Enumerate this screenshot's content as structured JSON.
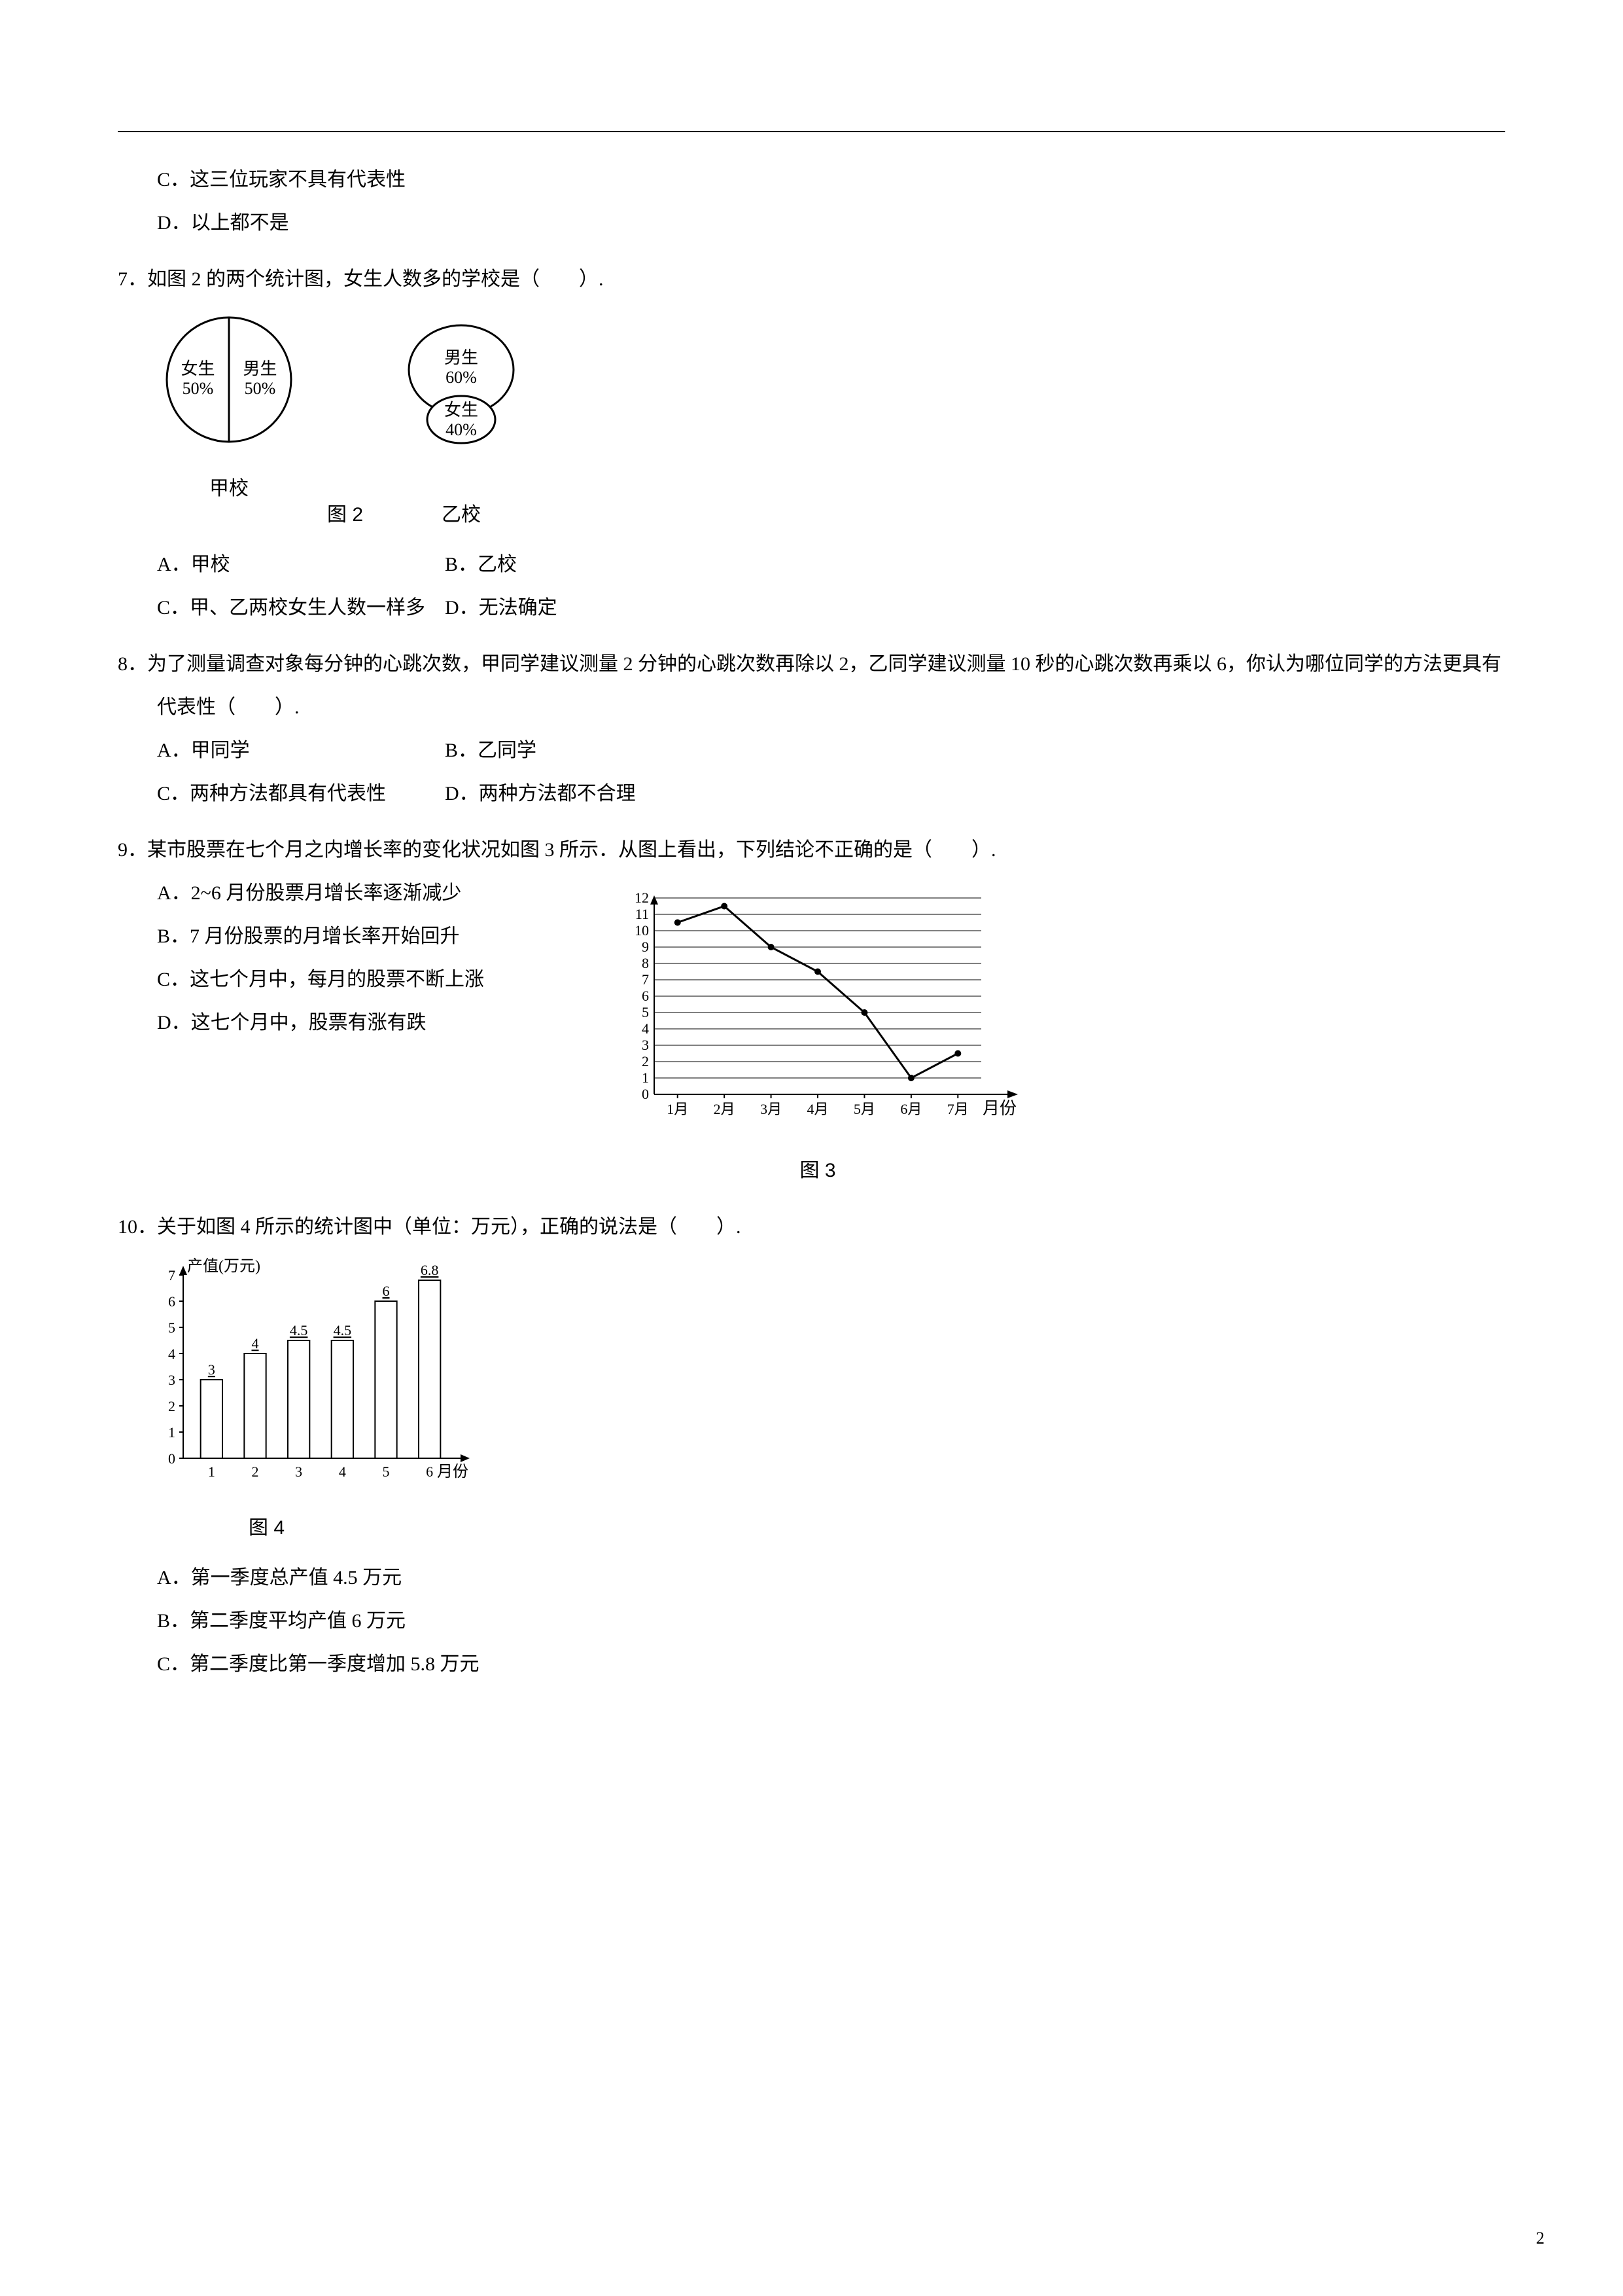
{
  "page_number": "2",
  "q6_opts": {
    "c": "C．这三位玩家不具有代表性",
    "d": "D．以上都不是"
  },
  "q7": {
    "stem": "7．如图 2 的两个统计图，女生人数多的学校是（　　）.",
    "optA": "A．甲校",
    "optB": "B．乙校",
    "optC": "C．甲、乙两校女生人数一样多",
    "optD": "D．无法确定",
    "fig_label": "图 2",
    "pie1": {
      "name": "甲校",
      "slices": [
        {
          "label": "男生",
          "percent_label": "50%",
          "value": 50,
          "color": "#ffffff"
        },
        {
          "label": "女生",
          "percent_label": "50%",
          "value": 50,
          "color": "#ffffff"
        }
      ],
      "stroke": "#000000",
      "radius": 95
    },
    "pie2": {
      "name": "乙校",
      "slices": [
        {
          "label": "男生",
          "percent_label": "60%",
          "value": 60,
          "color": "#ffffff"
        },
        {
          "label": "女生",
          "percent_label": "40%",
          "value": 40,
          "color": "#ffffff"
        }
      ],
      "stroke": "#000000",
      "radius": 95
    }
  },
  "q8": {
    "stem": "8．为了测量调查对象每分钟的心跳次数，甲同学建议测量 2 分钟的心跳次数再除以 2，乙同学建议测量 10 秒的心跳次数再乘以 6，你认为哪位同学的方法更具有代表性（　　）.",
    "optA": "A．甲同学",
    "optB": "B．乙同学",
    "optC": "C．两种方法都具有代表性",
    "optD": "D．两种方法都不合理"
  },
  "q9": {
    "stem": "9．某市股票在七个月之内增长率的变化状况如图 3 所示．从图上看出，下列结论不正确的是（　　）.",
    "optA": "A．2~6 月份股票月增长率逐渐减少",
    "optB": "B．7 月份股票的月增长率开始回升",
    "optC": "C．这七个月中，每月的股票不断上涨",
    "optD": "D．这七个月中，股票有涨有跌",
    "fig_label": "图 3",
    "chart": {
      "type": "line",
      "x_labels": [
        "1月",
        "2月",
        "3月",
        "4月",
        "5月",
        "6月",
        "7月"
      ],
      "x_axis_end": "月份",
      "y_ticks": [
        0,
        1,
        2,
        3,
        4,
        5,
        6,
        7,
        8,
        9,
        10,
        11,
        12
      ],
      "ylim": [
        0,
        12
      ],
      "points": [
        10.5,
        11.5,
        9,
        7.5,
        5,
        1,
        2.5
      ],
      "line_color": "#000000",
      "grid_color": "#000000",
      "background_color": "#ffffff",
      "axis_color": "#000000",
      "line_width": 2,
      "label_fontsize": 22
    }
  },
  "q10": {
    "stem": "10．关于如图 4 所示的统计图中（单位：万元），正确的说法是（　　）.",
    "optA": "A．第一季度总产值 4.5 万元",
    "optB": "B．第二季度平均产值 6 万元",
    "optC": "C．第二季度比第一季度增加 5.8 万元",
    "fig_label": "图 4",
    "chart": {
      "type": "bar",
      "y_label": "产值(万元)",
      "x_axis_end": "月份",
      "x_labels": [
        "1",
        "2",
        "3",
        "4",
        "5",
        "6"
      ],
      "y_ticks": [
        0,
        1,
        2,
        3,
        4,
        5,
        6,
        7
      ],
      "ylim": [
        0,
        7
      ],
      "values": [
        3,
        4,
        4.5,
        4.5,
        6,
        6.8
      ],
      "value_labels": [
        "3",
        "4",
        "4.5",
        "4.5",
        "6",
        "6.8"
      ],
      "bar_width": 0.5,
      "bar_fill": "#ffffff",
      "bar_stroke": "#000000",
      "axis_color": "#000000",
      "label_fontsize": 22
    }
  }
}
